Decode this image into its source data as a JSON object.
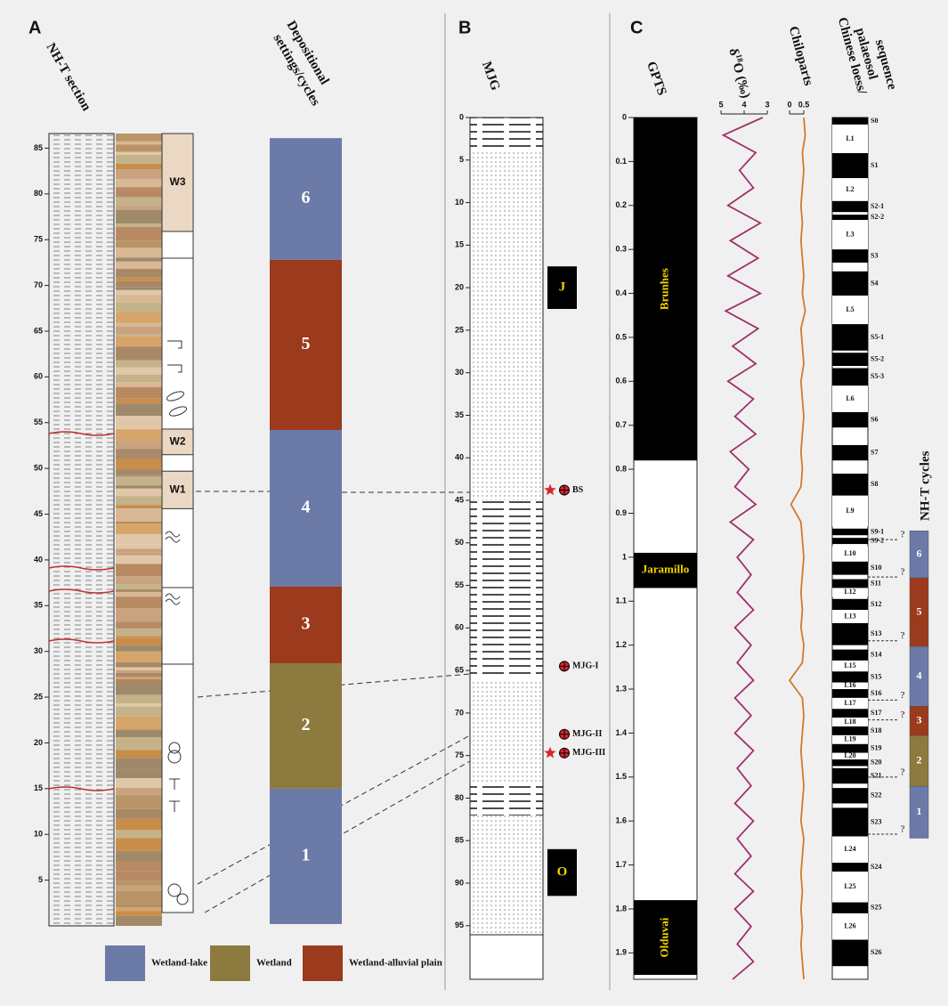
{
  "panels": {
    "A": {
      "letter": "A",
      "section_title": "NH-T section",
      "setting_title": [
        "Depositional",
        "settings/cycles"
      ],
      "depth_range": [
        0,
        86.6
      ],
      "depth_ticks": [
        5,
        10,
        15,
        20,
        25,
        30,
        35,
        40,
        45,
        50,
        55,
        60,
        65,
        70,
        75,
        80,
        85
      ],
      "units": [
        {
          "label": "W3",
          "top": 86.6,
          "bottom": 75.9
        },
        {
          "label": "W2",
          "top": 54.3,
          "bottom": 51.5
        },
        {
          "label": "W1",
          "top": 49.7,
          "bottom": 45.6
        }
      ],
      "cycles": [
        {
          "label": "6",
          "color": "#6c7aa8",
          "top": 86.1,
          "bottom": 72.8
        },
        {
          "label": "5",
          "color": "#9b3a1d",
          "top": 72.8,
          "bottom": 54.2
        },
        {
          "label": "4",
          "color": "#6c7aa8",
          "top": 54.2,
          "bottom": 37.1
        },
        {
          "label": "3",
          "color": "#9b3a1d",
          "top": 37.1,
          "bottom": 28.7
        },
        {
          "label": "2",
          "color": "#8c7a3e",
          "top": 28.7,
          "bottom": 15.0
        },
        {
          "label": "1",
          "color": "#6c7aa8",
          "top": 15.0,
          "bottom": 0.2
        }
      ]
    },
    "legend": [
      {
        "label": "Wetland-lake",
        "color": "#6c7aa8"
      },
      {
        "label": "Wetland",
        "color": "#8c7a3e"
      },
      {
        "label": "Wetland-alluvial plain",
        "color": "#9b3a1d"
      }
    ],
    "B": {
      "letter": "B",
      "title": "MJG",
      "depth_range": [
        0,
        101.3
      ],
      "depth_ticks": [
        0,
        5,
        10,
        15,
        20,
        25,
        30,
        35,
        40,
        45,
        50,
        55,
        60,
        65,
        70,
        75,
        80,
        85,
        90,
        95
      ],
      "cores": [
        {
          "label": "J",
          "top": 17.5,
          "bottom": 22.5
        },
        {
          "label": "O",
          "top": 86,
          "bottom": 91.5
        }
      ],
      "samples": [
        {
          "label": "BS",
          "depth": 43.8,
          "star": true
        },
        {
          "label": "MJG-I",
          "depth": 64.5,
          "star": false
        },
        {
          "label": "MJG-II",
          "depth": 72.5,
          "star": false
        },
        {
          "label": "MJG-III",
          "depth": 74.7,
          "star": true
        }
      ]
    },
    "C": {
      "letter": "C",
      "age_range": [
        0,
        1.96
      ],
      "age_ticks": [
        0,
        0.1,
        0.2,
        0.3,
        0.4,
        0.5,
        0.6,
        0.7,
        0.8,
        0.9,
        1,
        1.1,
        1.2,
        1.3,
        1.4,
        1.5,
        1.6,
        1.7,
        1.8,
        1.9
      ],
      "gpts": {
        "title": "GPTS",
        "chrons": [
          {
            "label": "Brunhes",
            "top": 0,
            "bottom": 0.78
          },
          {
            "label": "Jaramillo",
            "top": 0.99,
            "bottom": 1.07
          },
          {
            "label": "Olduvai",
            "top": 1.78,
            "bottom": 1.95
          }
        ]
      },
      "d18o": {
        "title": {
          "prefix": "δ",
          "sup": "18",
          "suffix": "O (‰)"
        },
        "color": "#a0306a",
        "xlim": [
          5,
          3
        ],
        "xticks": [
          5,
          4,
          3
        ],
        "ages": [
          0,
          0.04,
          0.08,
          0.12,
          0.16,
          0.2,
          0.24,
          0.28,
          0.32,
          0.36,
          0.4,
          0.44,
          0.48,
          0.52,
          0.56,
          0.6,
          0.64,
          0.68,
          0.72,
          0.76,
          0.8,
          0.84,
          0.88,
          0.92,
          0.96,
          1,
          1.04,
          1.08,
          1.12,
          1.16,
          1.2,
          1.24,
          1.28,
          1.32,
          1.36,
          1.4,
          1.44,
          1.48,
          1.52,
          1.56,
          1.6,
          1.64,
          1.68,
          1.72,
          1.76,
          1.8,
          1.84,
          1.88,
          1.92,
          1.96
        ],
        "values": [
          3.2,
          4.9,
          3.5,
          4.2,
          3.6,
          4.7,
          3.3,
          4.6,
          3.4,
          4.7,
          3.3,
          4.8,
          3.4,
          4.5,
          3.5,
          4.7,
          3.6,
          4.4,
          3.5,
          4.6,
          3.8,
          4.4,
          3.5,
          4.6,
          3.6,
          4.3,
          3.7,
          4.3,
          3.6,
          4.4,
          3.7,
          4.3,
          3.6,
          4.4,
          3.7,
          4.4,
          3.6,
          4.3,
          3.7,
          4.4,
          3.6,
          4.3,
          3.7,
          4.4,
          3.6,
          4.4,
          3.7,
          4.3,
          3.6,
          4.5
        ]
      },
      "chiloparts": {
        "title": "Chiloparts",
        "color": "#d4792a",
        "xlim": [
          0,
          0.5
        ],
        "xticks": [
          0,
          0.5
        ],
        "ages": [
          0,
          0.04,
          0.08,
          0.12,
          0.16,
          0.2,
          0.24,
          0.28,
          0.32,
          0.36,
          0.4,
          0.44,
          0.48,
          0.52,
          0.56,
          0.6,
          0.64,
          0.68,
          0.72,
          0.76,
          0.8,
          0.84,
          0.88,
          0.92,
          0.96,
          1,
          1.04,
          1.08,
          1.12,
          1.16,
          1.2,
          1.24,
          1.28,
          1.32,
          1.36,
          1.4,
          1.44,
          1.48,
          1.52,
          1.56,
          1.6,
          1.64,
          1.68,
          1.72,
          1.76,
          1.8,
          1.84,
          1.88,
          1.92,
          1.96
        ],
        "values": [
          0.5,
          0.55,
          0.45,
          0.5,
          0.45,
          0.4,
          0.45,
          0.4,
          0.45,
          0.5,
          0.45,
          0.55,
          0.4,
          0.45,
          0.5,
          0.4,
          0.45,
          0.5,
          0.45,
          0.4,
          0.45,
          0.4,
          0.05,
          0.4,
          0.45,
          0.5,
          0.45,
          0.4,
          0.45,
          0.4,
          0.5,
          0.45,
          0.0,
          0.45,
          0.5,
          0.45,
          0.4,
          0.45,
          0.5,
          0.45,
          0.4,
          0.5,
          0.45,
          0.4,
          0.45,
          0.4,
          0.45,
          0.4,
          0.45,
          0.5
        ]
      },
      "loess": {
        "title": [
          "Chinese loess/",
          "palaeosol",
          "sequence"
        ],
        "units": [
          {
            "label": "S0",
            "from": 0,
            "to": 0.016
          },
          {
            "label": "L1",
            "from": 0.016,
            "to": 0.081
          },
          {
            "label": "S1",
            "from": 0.081,
            "to": 0.138
          },
          {
            "label": "L2",
            "from": 0.138,
            "to": 0.19
          },
          {
            "label": "S2-1",
            "from": 0.19,
            "to": 0.215
          },
          {
            "label": "S2-2",
            "from": 0.221,
            "to": 0.233
          },
          {
            "label": "L3",
            "from": 0.233,
            "to": 0.3
          },
          {
            "label": "S3",
            "from": 0.3,
            "to": 0.33
          },
          {
            "label": "S4",
            "from": 0.35,
            "to": 0.405
          },
          {
            "label": "L5",
            "from": 0.405,
            "to": 0.47
          },
          {
            "label": "S5-1",
            "from": 0.47,
            "to": 0.53
          },
          {
            "label": "S5-2",
            "from": 0.535,
            "to": 0.565
          },
          {
            "label": "S5-3",
            "from": 0.57,
            "to": 0.61
          },
          {
            "label": "L6",
            "from": 0.61,
            "to": 0.67
          },
          {
            "label": "S6",
            "from": 0.67,
            "to": 0.705
          },
          {
            "label": "S7",
            "from": 0.745,
            "to": 0.78
          },
          {
            "label": "S8",
            "from": 0.81,
            "to": 0.86
          },
          {
            "label": "L9",
            "from": 0.86,
            "to": 0.93
          },
          {
            "label": "S9-1",
            "from": 0.935,
            "to": 0.95
          },
          {
            "label": "S9-2",
            "from": 0.956,
            "to": 0.97
          },
          {
            "label": "L10",
            "from": 0.975,
            "to": 1.01
          },
          {
            "label": "S10",
            "from": 1.01,
            "to": 1.04
          },
          {
            "label": "S11",
            "from": 1.05,
            "to": 1.07
          },
          {
            "label": "L12",
            "from": 1.07,
            "to": 1.09
          },
          {
            "label": "S12",
            "from": 1.095,
            "to": 1.12
          },
          {
            "label": "L13",
            "from": 1.12,
            "to": 1.15
          },
          {
            "label": "S13",
            "from": 1.15,
            "to": 1.2
          },
          {
            "label": "S14",
            "from": 1.21,
            "to": 1.235
          },
          {
            "label": "L15",
            "from": 1.235,
            "to": 1.26
          },
          {
            "label": "S15",
            "from": 1.26,
            "to": 1.285
          },
          {
            "label": "L16",
            "from": 1.285,
            "to": 1.3
          },
          {
            "label": "S16",
            "from": 1.3,
            "to": 1.32
          },
          {
            "label": "L17",
            "from": 1.32,
            "to": 1.345
          },
          {
            "label": "S17",
            "from": 1.345,
            "to": 1.365
          },
          {
            "label": "L18",
            "from": 1.365,
            "to": 1.385
          },
          {
            "label": "S18",
            "from": 1.385,
            "to": 1.405
          },
          {
            "label": "L19",
            "from": 1.405,
            "to": 1.425
          },
          {
            "label": "S19",
            "from": 1.425,
            "to": 1.445
          },
          {
            "label": "L20",
            "from": 1.445,
            "to": 1.46
          },
          {
            "label": "S20",
            "from": 1.46,
            "to": 1.475
          },
          {
            "label": "S21",
            "from": 1.48,
            "to": 1.515
          },
          {
            "label": "S22",
            "from": 1.525,
            "to": 1.56
          },
          {
            "label": "S23",
            "from": 1.57,
            "to": 1.635
          },
          {
            "label": "L24",
            "from": 1.635,
            "to": 1.695
          },
          {
            "label": "S24",
            "from": 1.695,
            "to": 1.715
          },
          {
            "label": "L25",
            "from": 1.715,
            "to": 1.785
          },
          {
            "label": "S25",
            "from": 1.785,
            "to": 1.81
          },
          {
            "label": "L26",
            "from": 1.81,
            "to": 1.87
          },
          {
            "label": "S26",
            "from": 1.87,
            "to": 1.93
          }
        ]
      },
      "nht": {
        "title": "NH-T cycles",
        "cycles": [
          {
            "label": "6",
            "color": "#6c7aa8",
            "from": 0.94,
            "to": 1.047
          },
          {
            "label": "5",
            "color": "#9b3a1d",
            "from": 1.047,
            "to": 1.203
          },
          {
            "label": "4",
            "color": "#6c7aa8",
            "from": 1.203,
            "to": 1.339
          },
          {
            "label": "3",
            "color": "#9b3a1d",
            "from": 1.339,
            "to": 1.406
          },
          {
            "label": "2",
            "color": "#8c7a3e",
            "from": 1.406,
            "to": 1.521
          },
          {
            "label": "1",
            "color": "#6c7aa8",
            "from": 1.521,
            "to": 1.639
          }
        ],
        "question_marks": [
          {
            "label": "?",
            "age": 0.96
          },
          {
            "label": "?",
            "age": 1.045
          },
          {
            "label": "?",
            "age": 1.19
          },
          {
            "label": "?",
            "age": 1.325
          },
          {
            "label": "?",
            "age": 1.37
          },
          {
            "label": "?",
            "age": 1.5
          },
          {
            "label": "?",
            "age": 1.63
          }
        ]
      }
    }
  }
}
